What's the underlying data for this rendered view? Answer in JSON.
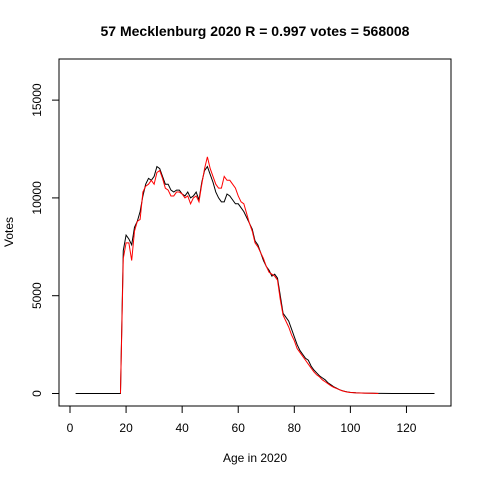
{
  "chart_data": {
    "type": "line",
    "title": "57 Mecklenburg 2020 R = 0.997 votes = 568008",
    "xlabel": "Age in 2020",
    "ylabel": "Votes",
    "xlim": [
      0,
      130
    ],
    "ylim": [
      0,
      17000
    ],
    "xticks": [
      0,
      20,
      40,
      60,
      80,
      100,
      120
    ],
    "yticks": [
      0,
      5000,
      10000,
      15000
    ],
    "grid": false,
    "series": [
      {
        "color": "#000000",
        "x": [
          2,
          18,
          19,
          20,
          21,
          22,
          23,
          24,
          25,
          26,
          27,
          28,
          29,
          30,
          31,
          32,
          33,
          34,
          35,
          36,
          37,
          38,
          39,
          40,
          41,
          42,
          43,
          44,
          45,
          46,
          47,
          48,
          49,
          50,
          51,
          52,
          53,
          54,
          55,
          56,
          57,
          58,
          59,
          60,
          61,
          62,
          63,
          64,
          65,
          66,
          67,
          68,
          69,
          70,
          71,
          72,
          73,
          74,
          75,
          76,
          77,
          78,
          79,
          80,
          81,
          82,
          83,
          84,
          85,
          86,
          87,
          88,
          89,
          90,
          91,
          92,
          93,
          94,
          95,
          96,
          97,
          98,
          99,
          100,
          102,
          105,
          108,
          110,
          115,
          120,
          125,
          130
        ],
        "y": [
          0,
          0,
          7300,
          8100,
          7900,
          7600,
          8500,
          8800,
          9300,
          10100,
          10700,
          11000,
          10900,
          11100,
          11600,
          11500,
          11100,
          10700,
          10700,
          10400,
          10300,
          10400,
          10400,
          10200,
          10100,
          10300,
          10000,
          10100,
          10300,
          9900,
          10800,
          11400,
          11600,
          11200,
          10800,
          10300,
          10000,
          9800,
          9800,
          10200,
          10100,
          9900,
          9700,
          9700,
          9500,
          9300,
          9000,
          8700,
          8400,
          7800,
          7600,
          7200,
          6800,
          6500,
          6300,
          6000,
          6100,
          5900,
          5000,
          4100,
          3900,
          3700,
          3300,
          2900,
          2500,
          2200,
          2000,
          1800,
          1700,
          1400,
          1200,
          1050,
          900,
          800,
          700,
          550,
          450,
          350,
          280,
          200,
          150,
          110,
          80,
          60,
          40,
          20,
          10,
          5,
          0,
          0,
          0,
          0
        ]
      },
      {
        "color": "#ff0000",
        "x": [
          18,
          19,
          20,
          21,
          22,
          23,
          24,
          25,
          26,
          27,
          28,
          29,
          30,
          31,
          32,
          33,
          34,
          35,
          36,
          37,
          38,
          39,
          40,
          41,
          42,
          43,
          44,
          45,
          46,
          47,
          48,
          49,
          50,
          51,
          52,
          53,
          54,
          55,
          56,
          57,
          58,
          59,
          60,
          61,
          62,
          63,
          64,
          65,
          66,
          67,
          68,
          69,
          70,
          71,
          72,
          73,
          74,
          75,
          76,
          77,
          78,
          79,
          80,
          81,
          82,
          83,
          84,
          85,
          86,
          87,
          88,
          89,
          90,
          91,
          92,
          93,
          94,
          95,
          96,
          97,
          98,
          99,
          100,
          102,
          105,
          108,
          110
        ],
        "y": [
          0,
          6900,
          7700,
          7700,
          6800,
          8300,
          8800,
          8900,
          10300,
          10600,
          10700,
          10900,
          10700,
          11300,
          11400,
          11000,
          10500,
          10400,
          10100,
          10100,
          10300,
          10300,
          10200,
          10000,
          10100,
          9700,
          10000,
          10100,
          9800,
          10700,
          11500,
          12100,
          11500,
          11100,
          10700,
          10500,
          10500,
          11100,
          10900,
          10900,
          10700,
          10500,
          10100,
          9800,
          9700,
          9200,
          8700,
          8300,
          7700,
          7500,
          7200,
          6900,
          6500,
          6200,
          6100,
          6000,
          5800,
          4800,
          4000,
          3700,
          3400,
          3000,
          2700,
          2300,
          2100,
          1900,
          1700,
          1500,
          1300,
          1100,
          950,
          850,
          700,
          600,
          500,
          400,
          320,
          260,
          200,
          140,
          100,
          70,
          50,
          30,
          20,
          10,
          0
        ]
      }
    ]
  }
}
